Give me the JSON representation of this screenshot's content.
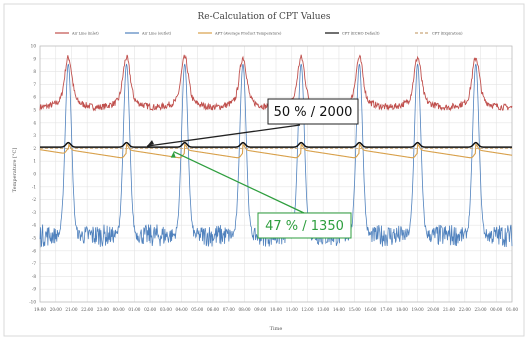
{
  "chart_data": {
    "type": "line",
    "title": "Re-Calculation of CPT Values",
    "xlabel": "Time",
    "ylabel": "Temperature [°C]",
    "ylim": [
      -10,
      10
    ],
    "y_ticks": [
      -10,
      -9,
      -8,
      -7,
      -6,
      -5,
      -4,
      -3,
      -2,
      -1,
      0,
      1,
      2,
      3,
      4,
      5,
      6,
      7,
      8,
      9,
      10
    ],
    "x_tick_labels": [
      "19:00",
      "20:00",
      "21:00",
      "22:00",
      "23:00",
      "00:00",
      "01:00",
      "02:00",
      "03:00",
      "04:00",
      "05:00",
      "06:00",
      "07:00",
      "08:00",
      "09:00",
      "10:00",
      "11:00",
      "12:00",
      "13:00",
      "14:00",
      "15:00",
      "16:00",
      "17:00",
      "18:00",
      "19:00",
      "20:00",
      "21:00",
      "22:00",
      "23:00",
      "00:00",
      "01:00"
    ],
    "grid": true,
    "legend_position": "top",
    "series": [
      {
        "name": "Air Line (inlet)",
        "color": "#c0504d",
        "style": "solid",
        "baseline": 5.2,
        "peak": 9.1,
        "noise": 0.25
      },
      {
        "name": "Air Line (outlet)",
        "color": "#4f81bd",
        "style": "solid",
        "baseline": -4.8,
        "peak": 8.6,
        "noise": 0.9
      },
      {
        "name": "APT (Average Product Temperature)",
        "color": "#d8a04a",
        "style": "solid",
        "start": 1.9,
        "end": 1.2
      },
      {
        "name": "CPT (ECHO Default)",
        "color": "#111111",
        "style": "solid",
        "value": 2.1
      },
      {
        "name": "CPT (Expiration)",
        "color": "#c9a87a",
        "style": "dashed",
        "value": 2.0
      }
    ],
    "defrost_peaks_x": [
      1.8,
      5.5,
      9.2,
      12.9,
      16.6,
      20.3,
      24.0,
      27.7
    ],
    "annotations": [
      {
        "text": "50 % / 2000",
        "color": "#111111",
        "target_x": 6.8,
        "target_y": 2.1
      },
      {
        "text": "47 % / 1350",
        "color": "#2e9e3e",
        "target_x": 8.5,
        "target_y": 1.9
      }
    ]
  }
}
